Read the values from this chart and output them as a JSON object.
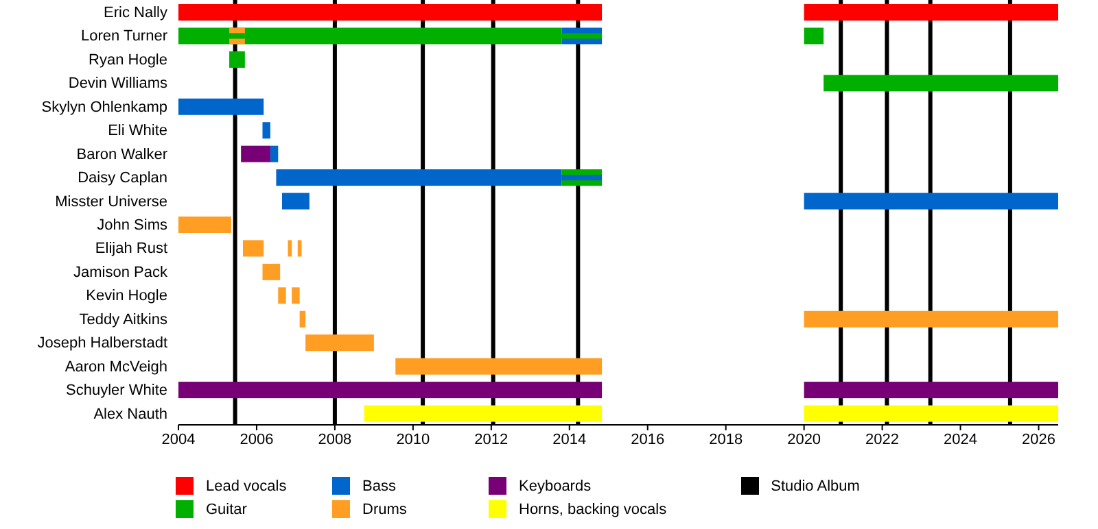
{
  "chart_data": {
    "type": "bar",
    "orientation": "horizontal",
    "categories": [
      "Eric Nally",
      "Loren Turner",
      "Ryan Hogle",
      "Devin Williams",
      "Skylyn Ohlenkamp",
      "Eli White",
      "Baron Walker",
      "Daisy Caplan",
      "Misster Universe",
      "John Sims",
      "Elijah Rust",
      "Jamison Pack",
      "Kevin Hogle",
      "Teddy Aitkins",
      "Joseph Halberstadt",
      "Aaron McVeigh",
      "Schuyler White",
      "Alex Nauth"
    ],
    "xlim": [
      2004,
      2026.5
    ],
    "xticks": [
      2004,
      2006,
      2008,
      2010,
      2012,
      2014,
      2016,
      2018,
      2020,
      2022,
      2024,
      2026
    ],
    "legend": "bottom",
    "series": [
      {
        "name": "Lead vocals",
        "color": "#ff0000",
        "base": [
          2004,
          null,
          null,
          null,
          null,
          null,
          null,
          null,
          null,
          null,
          null,
          null,
          null,
          null,
          null,
          null,
          null,
          null
        ],
        "values": [
          10.83,
          null,
          null,
          null,
          null,
          null,
          null,
          null,
          null,
          null,
          null,
          null,
          null,
          null,
          null,
          null,
          null,
          null
        ]
      },
      {
        "color": "#ff0000",
        "base": [
          2020,
          null,
          null,
          null,
          null,
          null,
          null,
          null,
          null,
          null,
          null,
          null,
          null,
          null,
          null,
          null,
          null,
          null
        ],
        "values": [
          6.5,
          null,
          null,
          null,
          null,
          null,
          null,
          null,
          null,
          null,
          null,
          null,
          null,
          null,
          null,
          null,
          null,
          null
        ]
      },
      {
        "name": "Guitar",
        "color": "#00b000",
        "base": [
          null,
          2004,
          2005.3,
          2020.5,
          null,
          null,
          null,
          2013.8,
          null,
          null,
          null,
          null,
          null,
          null,
          null,
          null,
          null,
          null
        ],
        "values": [
          null,
          9.8,
          0.4,
          6.0,
          null,
          null,
          null,
          1.03,
          null,
          null,
          null,
          null,
          null,
          null,
          null,
          null,
          null,
          null
        ]
      },
      {
        "color": "#00b000",
        "base": [
          null,
          2020,
          null,
          null,
          null,
          null,
          null,
          null,
          null,
          null,
          null,
          null,
          null,
          null,
          null,
          null,
          null,
          null
        ],
        "values": [
          null,
          0.5,
          null,
          null,
          null,
          null,
          null,
          null,
          null,
          null,
          null,
          null,
          null,
          null,
          null,
          null,
          null,
          null
        ]
      },
      {
        "name": "Bass",
        "color": "#0066cc",
        "base": [
          null,
          2013.8,
          null,
          null,
          2004,
          2006.15,
          2006.35,
          2006.5,
          2006.65,
          null,
          null,
          null,
          null,
          null,
          null,
          null,
          null,
          null
        ],
        "values": [
          null,
          1.03,
          null,
          null,
          2.18,
          0.2,
          0.2,
          7.3,
          0.7,
          null,
          null,
          null,
          null,
          null,
          null,
          null,
          null,
          null
        ]
      },
      {
        "color": "#0066cc",
        "base": [
          null,
          null,
          null,
          null,
          null,
          null,
          null,
          null,
          2020,
          null,
          null,
          null,
          null,
          null,
          null,
          null,
          null,
          null
        ],
        "values": [
          null,
          null,
          null,
          null,
          null,
          null,
          null,
          null,
          6.5,
          null,
          null,
          null,
          null,
          null,
          null,
          null,
          null,
          null
        ]
      },
      {
        "name": "Drums",
        "color": "#ff9e22",
        "base": [
          null,
          2005.3,
          null,
          null,
          null,
          null,
          null,
          null,
          null,
          2004,
          2005.65,
          2006.15,
          2006.55,
          2007.1,
          2007.25,
          2009.55,
          null,
          null
        ],
        "values": [
          null,
          0.4,
          null,
          null,
          null,
          null,
          null,
          null,
          null,
          1.35,
          0.53,
          0.45,
          0.2,
          0.15,
          1.75,
          5.28,
          null,
          null
        ]
      },
      {
        "color": "#ff9e22",
        "base": [
          null,
          null,
          null,
          null,
          null,
          null,
          null,
          null,
          null,
          null,
          2006.8,
          null,
          2006.9,
          2020,
          null,
          null,
          null,
          null
        ],
        "values": [
          null,
          null,
          null,
          null,
          null,
          null,
          null,
          null,
          null,
          null,
          0.1,
          null,
          0.2,
          6.5,
          null,
          null,
          null,
          null
        ]
      },
      {
        "color": "#ff9e22",
        "base": [
          null,
          null,
          null,
          null,
          null,
          null,
          null,
          null,
          null,
          null,
          2007.05,
          null,
          null,
          null,
          null,
          null,
          null,
          null
        ],
        "values": [
          null,
          null,
          null,
          null,
          null,
          null,
          null,
          null,
          null,
          null,
          0.1,
          null,
          null,
          null,
          null,
          null,
          null,
          null
        ]
      },
      {
        "name": "Keyboards",
        "color": "#770077",
        "base": [
          null,
          null,
          null,
          null,
          null,
          null,
          2005.6,
          null,
          null,
          null,
          null,
          null,
          null,
          null,
          null,
          null,
          2004,
          null
        ],
        "values": [
          null,
          null,
          null,
          null,
          null,
          null,
          0.75,
          null,
          null,
          null,
          null,
          null,
          null,
          null,
          null,
          null,
          10.83,
          null
        ]
      },
      {
        "color": "#770077",
        "base": [
          null,
          null,
          null,
          null,
          null,
          null,
          null,
          null,
          null,
          null,
          null,
          null,
          null,
          null,
          null,
          null,
          2020,
          null
        ],
        "values": [
          null,
          null,
          null,
          null,
          null,
          null,
          null,
          null,
          null,
          null,
          null,
          null,
          null,
          null,
          null,
          null,
          6.5,
          null
        ]
      },
      {
        "name": "Horns, backing vocals",
        "color": "#ffff00",
        "base": [
          null,
          null,
          null,
          null,
          null,
          null,
          null,
          null,
          null,
          null,
          null,
          null,
          null,
          null,
          null,
          null,
          null,
          2008.75
        ],
        "values": [
          null,
          null,
          null,
          null,
          null,
          null,
          null,
          null,
          null,
          null,
          null,
          null,
          null,
          null,
          null,
          null,
          null,
          6.08
        ]
      },
      {
        "color": "#ffff00",
        "base": [
          null,
          null,
          null,
          null,
          null,
          null,
          null,
          null,
          null,
          null,
          null,
          null,
          null,
          null,
          null,
          null,
          null,
          2020
        ],
        "values": [
          null,
          null,
          null,
          null,
          null,
          null,
          null,
          null,
          null,
          null,
          null,
          null,
          null,
          null,
          null,
          null,
          null,
          6.5
        ]
      },
      {
        "color": "#00b000",
        "base": [
          null,
          2005.3,
          null,
          null,
          null,
          null,
          null,
          null,
          null,
          null,
          null,
          null,
          null,
          null,
          null,
          null,
          null,
          null
        ],
        "values": [
          null,
          0.4,
          null,
          null,
          null,
          null,
          null,
          null,
          null,
          null,
          null,
          null,
          null,
          null,
          null,
          null,
          null,
          null
        ]
      },
      {
        "color": "#00b000",
        "base": [
          null,
          2013.8,
          null,
          null,
          null,
          null,
          null,
          null,
          null,
          null,
          null,
          null,
          null,
          null,
          null,
          null,
          null,
          null
        ],
        "values": [
          null,
          1.03,
          null,
          null,
          null,
          null,
          null,
          null,
          null,
          null,
          null,
          null,
          null,
          null,
          null,
          null,
          null,
          null
        ]
      },
      {
        "color": "#0066cc",
        "base": [
          null,
          null,
          null,
          null,
          null,
          null,
          null,
          2013.8,
          null,
          null,
          null,
          null,
          null,
          null,
          null,
          null,
          null,
          null
        ],
        "values": [
          null,
          null,
          null,
          null,
          null,
          null,
          null,
          1.03,
          null,
          null,
          null,
          null,
          null,
          null,
          null,
          null,
          null,
          null
        ]
      }
    ],
    "ref_lines": [
      {
        "axis": "x",
        "value": 2005.45,
        "label": "Studio Album",
        "color": "#000000"
      },
      {
        "axis": "x",
        "value": 2008.0,
        "color": "#000000"
      },
      {
        "axis": "x",
        "value": 2010.25,
        "color": "#000000"
      },
      {
        "axis": "x",
        "value": 2012.05,
        "color": "#000000"
      },
      {
        "axis": "x",
        "value": 2014.22,
        "color": "#000000"
      },
      {
        "axis": "x",
        "value": 2020.94,
        "color": "#000000"
      },
      {
        "axis": "x",
        "value": 2022.12,
        "color": "#000000"
      },
      {
        "axis": "x",
        "value": 2023.23,
        "color": "#000000"
      },
      {
        "axis": "x",
        "value": 2025.27,
        "color": "#000000"
      }
    ]
  }
}
